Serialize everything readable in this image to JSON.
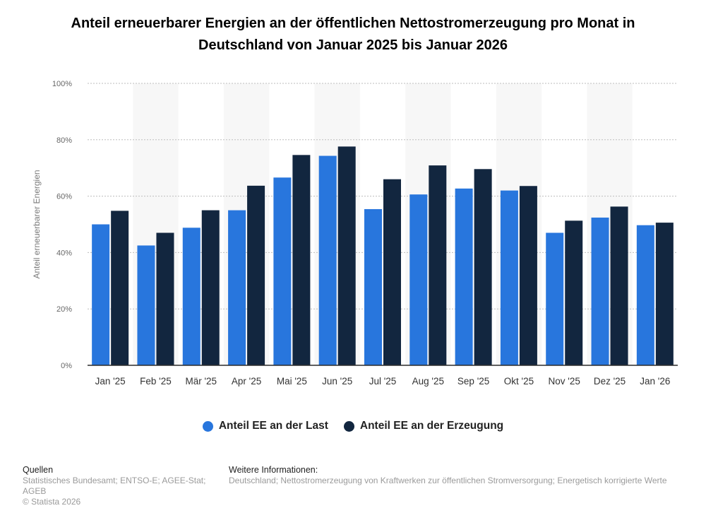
{
  "chart_data": {
    "type": "bar",
    "title": "Anteil erneuerbarer Energien an der öffentlichen Nettostromerzeugung pro Monat in Deutschland von Januar 2025 bis Januar 2026",
    "xlabel": "",
    "ylabel": "Anteil erneuerbarer Energien",
    "ylim": [
      0,
      100
    ],
    "yticks": [
      0,
      20,
      40,
      60,
      80,
      100
    ],
    "ytick_labels": [
      "0%",
      "20%",
      "40%",
      "60%",
      "80%",
      "100%"
    ],
    "grid": true,
    "legend_position": "bottom-center",
    "categories": [
      "Jan '25",
      "Feb '25",
      "Mär '25",
      "Apr '25",
      "Mai '25",
      "Jun '25",
      "Jul '25",
      "Aug '25",
      "Sep '25",
      "Okt '25",
      "Nov '25",
      "Dez '25",
      "Jan '26"
    ],
    "series": [
      {
        "name": "Anteil EE an der Last",
        "color": "#2876dd",
        "values": [
          50.0,
          42.5,
          48.8,
          55.0,
          66.6,
          74.3,
          55.4,
          60.6,
          62.7,
          62.0,
          47.0,
          52.4,
          49.7
        ]
      },
      {
        "name": "Anteil EE an der Erzeugung",
        "color": "#12263f",
        "values": [
          54.8,
          47.0,
          55.0,
          63.7,
          74.6,
          77.6,
          66.0,
          70.9,
          69.6,
          63.6,
          51.3,
          56.3,
          50.6
        ]
      }
    ]
  },
  "colors": {
    "band": "#f7f7f7",
    "grid": "#bdbdbd",
    "axis": "#2b2b2b",
    "tick_text": "#666666",
    "axis_label": "#7a7a7a"
  },
  "legend": {
    "items": [
      {
        "label": "Anteil EE an der Last",
        "color": "#2876dd"
      },
      {
        "label": "Anteil EE an der Erzeugung",
        "color": "#12263f"
      }
    ]
  },
  "footer": {
    "sources_heading": "Quellen",
    "sources_text": "Statistisches Bundesamt; ENTSO-E; AGEE-Stat; AGEB",
    "copyright": "© Statista 2026",
    "info_heading": "Weitere Informationen:",
    "info_text": "Deutschland; Nettostromerzeugung von Kraftwerken zur öffentlichen Stromversorgung; Energetisch korrigierte Werte"
  }
}
